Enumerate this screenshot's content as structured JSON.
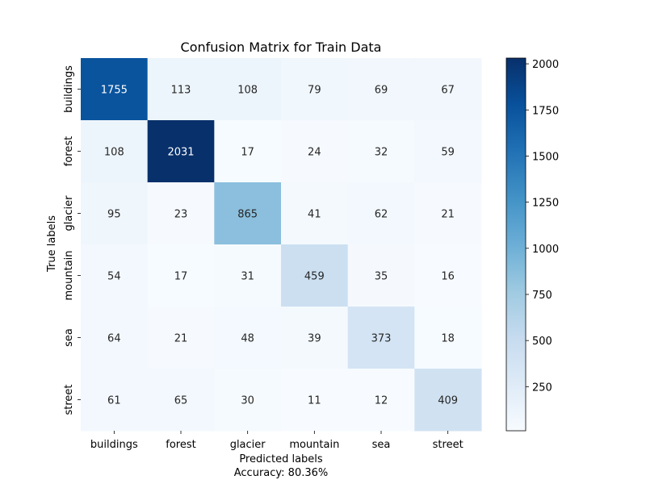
{
  "chart_data": {
    "type": "heatmap",
    "title": "Confusion Matrix for Train Data",
    "xlabel": "Predicted labels",
    "ylabel": "True labels",
    "footer": "Accuracy: 80.36%",
    "x_categories": [
      "buildings",
      "forest",
      "glacier",
      "mountain",
      "sea",
      "street"
    ],
    "y_categories": [
      "buildings",
      "forest",
      "glacier",
      "mountain",
      "sea",
      "street"
    ],
    "values": [
      [
        1755,
        113,
        108,
        79,
        69,
        67
      ],
      [
        108,
        2031,
        17,
        24,
        32,
        59
      ],
      [
        95,
        23,
        865,
        41,
        62,
        21
      ],
      [
        54,
        17,
        31,
        459,
        35,
        16
      ],
      [
        64,
        21,
        48,
        39,
        373,
        18
      ],
      [
        61,
        65,
        30,
        11,
        12,
        409
      ]
    ],
    "colormap": "Blues",
    "vmin": 11,
    "vmax": 2031,
    "colorbar_ticks": [
      250,
      500,
      750,
      1000,
      1250,
      1500,
      1750,
      2000
    ],
    "annotations": true,
    "grid": false
  }
}
